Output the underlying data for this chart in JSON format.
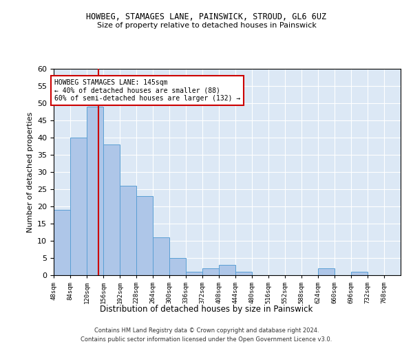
{
  "title1": "HOWBEG, STAMAGES LANE, PAINSWICK, STROUD, GL6 6UZ",
  "title2": "Size of property relative to detached houses in Painswick",
  "xlabel": "Distribution of detached houses by size in Painswick",
  "ylabel": "Number of detached properties",
  "bin_labels": [
    "48sqm",
    "84sqm",
    "120sqm",
    "156sqm",
    "192sqm",
    "228sqm",
    "264sqm",
    "300sqm",
    "336sqm",
    "372sqm",
    "408sqm",
    "444sqm",
    "480sqm",
    "516sqm",
    "552sqm",
    "588sqm",
    "624sqm",
    "660sqm",
    "696sqm",
    "732sqm",
    "768sqm"
  ],
  "bar_values": [
    19,
    40,
    49,
    38,
    26,
    23,
    11,
    5,
    1,
    2,
    3,
    1,
    0,
    0,
    0,
    0,
    2,
    0,
    1,
    0,
    0
  ],
  "bin_edges": [
    48,
    84,
    120,
    156,
    192,
    228,
    264,
    300,
    336,
    372,
    408,
    444,
    480,
    516,
    552,
    588,
    624,
    660,
    696,
    732,
    768,
    804
  ],
  "bar_color": "#aec6e8",
  "bar_edge_color": "#5a9fd4",
  "property_size": 145,
  "vline_color": "#cc0000",
  "annotation_line1": "HOWBEG STAMAGES LANE: 145sqm",
  "annotation_line2": "← 40% of detached houses are smaller (88)",
  "annotation_line3": "60% of semi-detached houses are larger (132) →",
  "annotation_box_color": "#ffffff",
  "annotation_box_edge_color": "#cc0000",
  "ylim": [
    0,
    60
  ],
  "yticks": [
    0,
    5,
    10,
    15,
    20,
    25,
    30,
    35,
    40,
    45,
    50,
    55,
    60
  ],
  "background_color": "#dce8f5",
  "footer1": "Contains HM Land Registry data © Crown copyright and database right 2024.",
  "footer2": "Contains public sector information licensed under the Open Government Licence v3.0."
}
